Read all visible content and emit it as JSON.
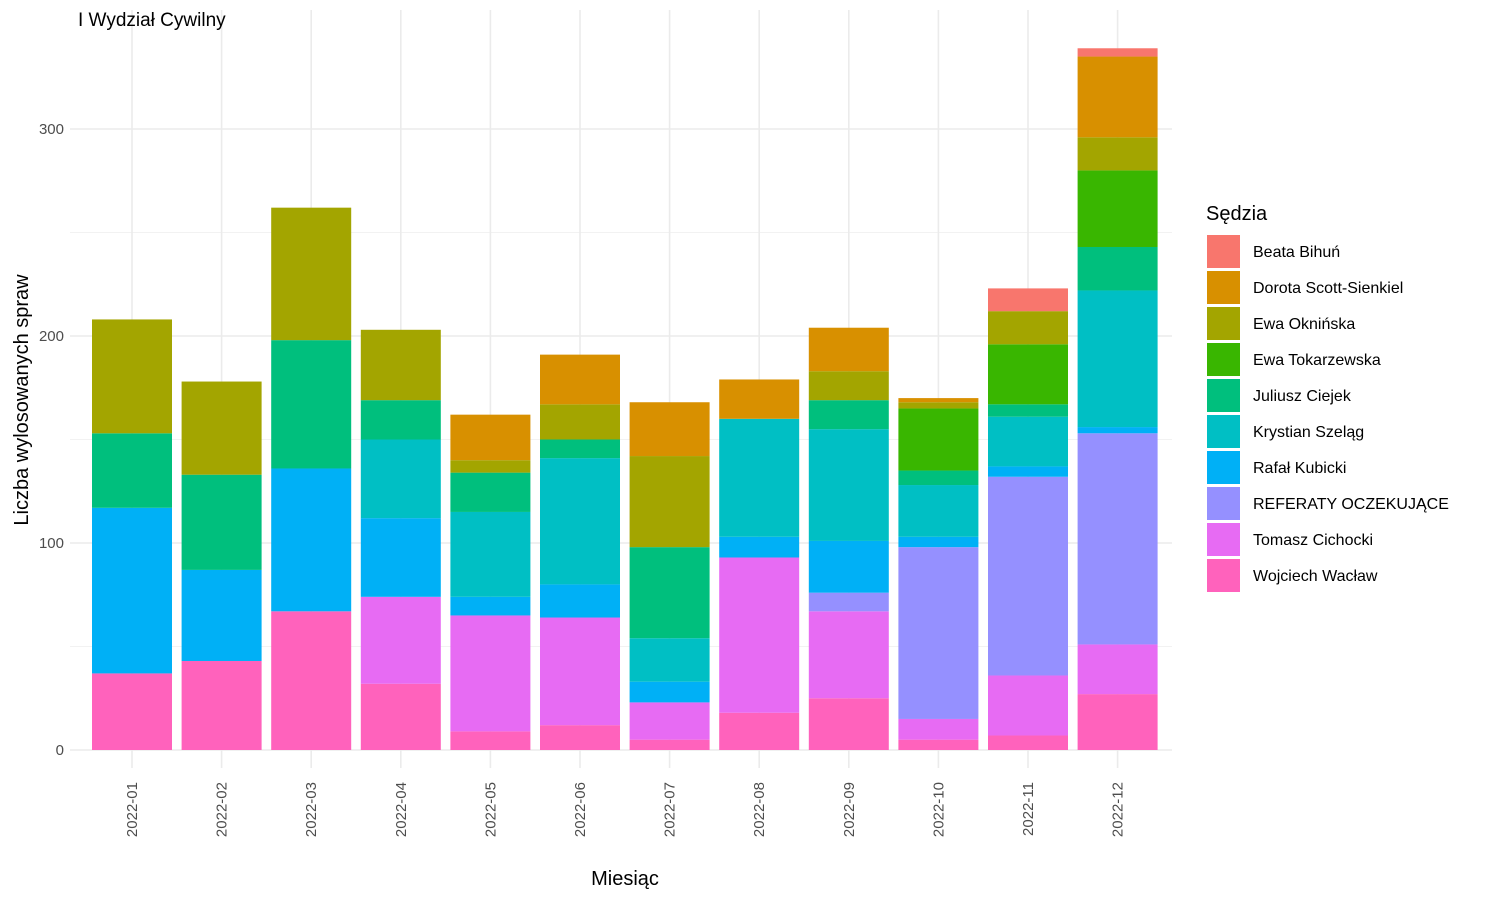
{
  "chart_data": {
    "type": "bar",
    "stacked": true,
    "title": "I Wydział Cywilny",
    "xlabel": "Miesiąc",
    "ylabel": "Liczba wylosowanych spraw",
    "ylim": [
      0,
      340
    ],
    "yticks": [
      0,
      100,
      200,
      300
    ],
    "grid": true,
    "legend_title": "Sędzia",
    "legend_position": "right",
    "categories": [
      "2022-01",
      "2022-02",
      "2022-03",
      "2022-04",
      "2022-05",
      "2022-06",
      "2022-07",
      "2022-08",
      "2022-09",
      "2022-10",
      "2022-11",
      "2022-12"
    ],
    "series": [
      {
        "name": "Beata Bihuń",
        "color": "#F8766D",
        "values": [
          0,
          0,
          0,
          0,
          0,
          0,
          0,
          0,
          0,
          0,
          11,
          4
        ]
      },
      {
        "name": "Dorota Scott-Sienkiel",
        "color": "#D89000",
        "values": [
          0,
          0,
          0,
          0,
          22,
          24,
          26,
          19,
          21,
          2,
          0,
          39
        ]
      },
      {
        "name": "Ewa Oknińska",
        "color": "#A3A500",
        "values": [
          55,
          45,
          64,
          34,
          6,
          17,
          44,
          0,
          14,
          3,
          16,
          16
        ]
      },
      {
        "name": "Ewa Tokarzewska",
        "color": "#39B600",
        "values": [
          0,
          0,
          0,
          0,
          0,
          0,
          0,
          0,
          0,
          30,
          29,
          37
        ]
      },
      {
        "name": "Juliusz Ciejek",
        "color": "#00BF7D",
        "values": [
          36,
          46,
          62,
          19,
          19,
          9,
          44,
          0,
          14,
          7,
          6,
          21
        ]
      },
      {
        "name": "Krystian Szeląg",
        "color": "#00BFC4",
        "values": [
          0,
          0,
          0,
          38,
          41,
          61,
          21,
          57,
          54,
          25,
          24,
          66
        ]
      },
      {
        "name": "Rafał Kubicki",
        "color": "#00B0F6",
        "values": [
          80,
          44,
          69,
          38,
          9,
          16,
          10,
          10,
          25,
          5,
          5,
          3
        ]
      },
      {
        "name": "REFERATY OCZEKUJĄCE",
        "color": "#9590FF",
        "values": [
          0,
          0,
          0,
          0,
          0,
          0,
          0,
          0,
          9,
          83,
          96,
          102
        ]
      },
      {
        "name": "Tomasz Cichocki",
        "color": "#E76BF3",
        "values": [
          0,
          0,
          0,
          42,
          56,
          52,
          18,
          75,
          42,
          10,
          29,
          24
        ]
      },
      {
        "name": "Wojciech Wacław",
        "color": "#FF62BC",
        "values": [
          37,
          43,
          67,
          32,
          9,
          12,
          5,
          18,
          25,
          5,
          7,
          27
        ]
      }
    ]
  }
}
